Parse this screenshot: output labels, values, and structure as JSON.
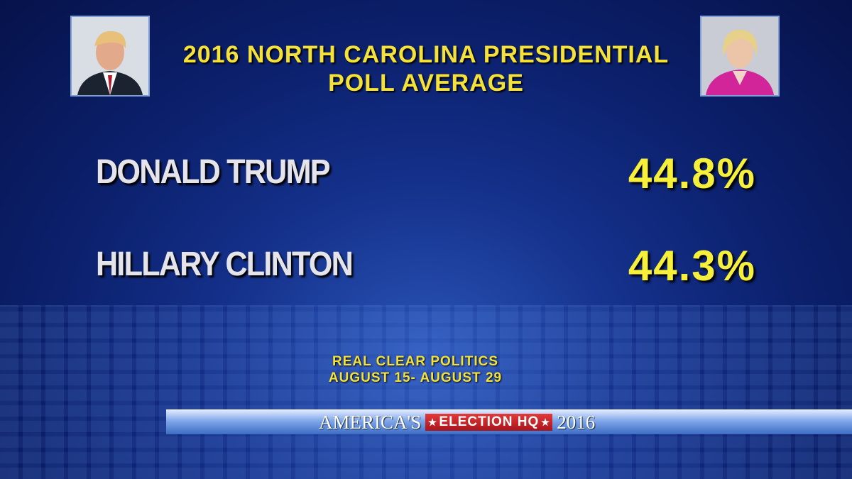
{
  "title": [
    "2016 NORTH CAROLINA PRESIDENTIAL",
    "POLL AVERAGE"
  ],
  "rows": [
    {
      "name": "DONALD TRUMP",
      "value": "44.8%"
    },
    {
      "name": "HILLARY CLINTON",
      "value": "44.3%"
    }
  ],
  "source": [
    "REAL CLEAR POLITICS",
    "AUGUST 15- AUGUST 29"
  ],
  "banner": {
    "left": "AMERICA'S",
    "middle": "ELECTION HQ",
    "right": "2016"
  }
}
